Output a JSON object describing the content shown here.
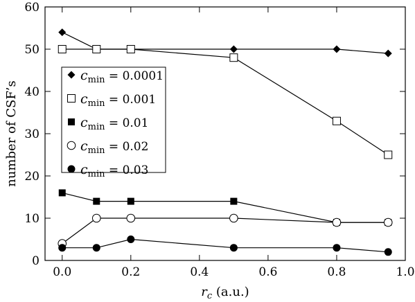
{
  "chart_data": {
    "type": "line",
    "xlabel": "r",
    "xlabel_sub": "c",
    "xlabel_unit": " (a.u.)",
    "ylabel": "number of CSF’s",
    "xlim": [
      -0.05,
      1.0
    ],
    "ylim": [
      0,
      60
    ],
    "xticks": [
      "0.0",
      "0.2",
      "0.4",
      "0.6",
      "0.8",
      "1.0"
    ],
    "xtick_values": [
      0.0,
      0.2,
      0.4,
      0.6,
      0.8,
      1.0
    ],
    "yticks": [
      "0",
      "10",
      "20",
      "30",
      "40",
      "50",
      "60"
    ],
    "ytick_values": [
      0,
      10,
      20,
      30,
      40,
      50,
      60
    ],
    "grid": false,
    "legend_position": "middle-left",
    "x": [
      0.0,
      0.1,
      0.2,
      0.5,
      0.8,
      0.95
    ],
    "series": [
      {
        "name_var": "c",
        "name_sub": "min",
        "name_val": " = 0.0001",
        "marker": "diamond",
        "values": [
          54,
          50,
          50,
          50,
          50,
          49
        ]
      },
      {
        "name_var": "c",
        "name_sub": "min",
        "name_val": " = 0.001",
        "marker": "square-open",
        "values": [
          50,
          50,
          50,
          48,
          33,
          25
        ]
      },
      {
        "name_var": "c",
        "name_sub": "min",
        "name_val": " = 0.01",
        "marker": "square-filled",
        "values": [
          16,
          14,
          14,
          14,
          9,
          9
        ]
      },
      {
        "name_var": "c",
        "name_sub": "min",
        "name_val": " = 0.02",
        "marker": "circle-open",
        "values": [
          4,
          10,
          10,
          10,
          9,
          9
        ]
      },
      {
        "name_var": "c",
        "name_sub": "min",
        "name_val": " = 0.03",
        "marker": "circle-filled",
        "values": [
          3,
          3,
          5,
          3,
          3,
          2
        ]
      }
    ]
  }
}
